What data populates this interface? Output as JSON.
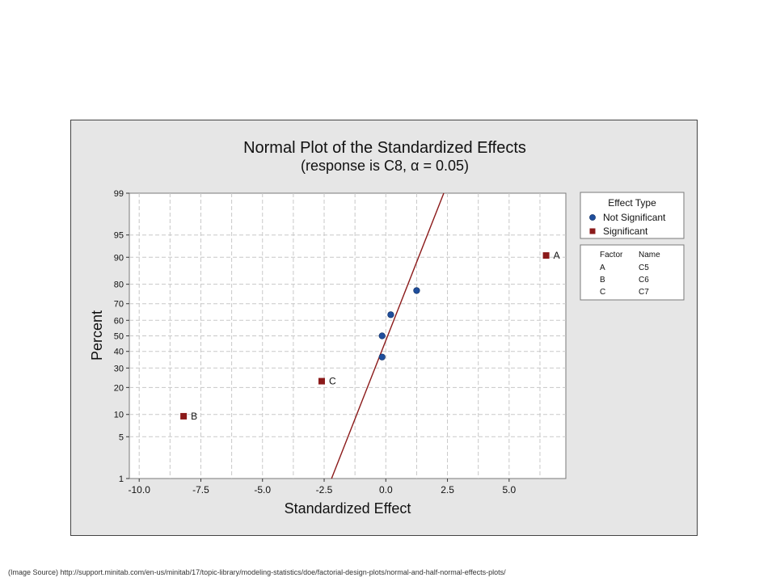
{
  "source_note": "(Image Source) http://support.minitab.com/en-us/minitab/17/topic-library/modeling-statistics/doe/factorial-design-plots/normal-and-half-normal-effects-plots/",
  "chart_data": {
    "type": "scatter",
    "title": "Normal Plot of the Standardized Effects",
    "subtitle": "(response is C8, α = 0.05)",
    "xlabel": "Standardized Effect",
    "ylabel": "Percent",
    "xlim": [
      -10.4,
      7.3
    ],
    "yscale": "normal-probability",
    "ylim": [
      1,
      99
    ],
    "xticks": [
      {
        "value": -10,
        "label": "-10.0"
      },
      {
        "value": -7.5,
        "label": "-7.5"
      },
      {
        "value": -5,
        "label": "-5.0"
      },
      {
        "value": -2.5,
        "label": "-2.5"
      },
      {
        "value": 0,
        "label": "0.0"
      },
      {
        "value": 2.5,
        "label": "2.5"
      },
      {
        "value": 5,
        "label": "5.0"
      }
    ],
    "yticks": [
      1,
      5,
      10,
      20,
      30,
      40,
      50,
      60,
      70,
      80,
      90,
      95,
      99
    ],
    "grid": true,
    "reference_line": {
      "points": [
        [
          -2.2,
          1
        ],
        [
          2.35,
          99
        ]
      ],
      "color": "#8b1a1a"
    },
    "series": [
      {
        "name": "Not Significant",
        "marker": "circle",
        "color": "#1f4e9c",
        "points": [
          {
            "x": -0.15,
            "y": 36.5
          },
          {
            "x": -0.15,
            "y": 50
          },
          {
            "x": 0.2,
            "y": 63.5
          },
          {
            "x": 1.25,
            "y": 77
          }
        ]
      },
      {
        "name": "Significant",
        "marker": "square",
        "color": "#8b1a1a",
        "points": [
          {
            "x": -8.2,
            "y": 9.5,
            "label": "B"
          },
          {
            "x": -2.6,
            "y": 23,
            "label": "C"
          },
          {
            "x": 6.5,
            "y": 90.5,
            "label": "A"
          }
        ]
      }
    ],
    "legend": {
      "title": "Effect Type",
      "placement": "right",
      "entries": [
        "Not Significant",
        "Significant"
      ]
    },
    "factor_table": {
      "headers": [
        "Factor",
        "Name"
      ],
      "rows": [
        [
          "A",
          "C5"
        ],
        [
          "B",
          "C6"
        ],
        [
          "C",
          "C7"
        ]
      ]
    }
  }
}
